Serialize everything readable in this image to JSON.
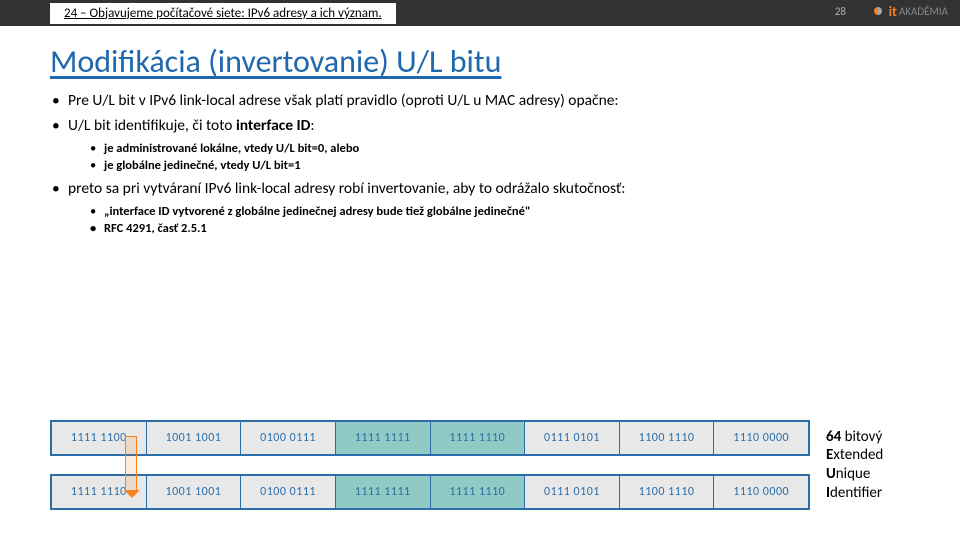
{
  "header": {
    "label": "24 – Objavujeme počítačové siete: IPv6 adresy a ich význam.",
    "page_number": "28",
    "logo_it": "it",
    "logo_rest": "AKADÉMIA"
  },
  "title": "Modifikácia (invertovanie) U/L bitu",
  "bullets": {
    "b1": "Pre U/L bit v IPv6 link-local adrese však platí pravidlo (oproti U/L u MAC adresy)  opačne:",
    "b2_pre": "U/L bit identifikuje, či toto ",
    "b2_bold": "interface ID",
    "b2_post": ":",
    "b2a_pre": "je administrované lokálne, vtedy ",
    "b2a_bold": "U/L bit=0",
    "b2a_post": ", alebo",
    "b2b_pre": "je globálne jedinečné, vtedy ",
    "b2b_bold": "U/L bit=1",
    "b3": "preto sa pri vytváraní IPv6 link-local adresy robí invertovanie, aby to odrážalo skutočnosť:",
    "b3a_pre": "„interface ID vytvorené z ",
    "b3a_bold": "globálne jedinečnej adresy bude tiež globálne jedinečné",
    "b3a_post": "\"",
    "b3b": "RFC 4291, časť 2.5.1"
  },
  "diagram": {
    "row1": [
      "1111 1100",
      "1001 1001",
      "0100 0111",
      "1111 1111",
      "1111 1110",
      "0111 0101",
      "1100 1110",
      "1110 0000"
    ],
    "row2": [
      "1111 1110",
      "1001 1001",
      "0100 0111",
      "1111 1111",
      "1111 1110",
      "0111 0101",
      "1100 1110",
      "1110 0000"
    ],
    "highlight_indices": [
      3,
      4
    ],
    "colors": {
      "cell_text": "#2a6da8",
      "cell_border": "#2a6da8",
      "cell_bg": "#e8e8e8",
      "highlight_bg": "#8fcac5",
      "arrow": "#f58220"
    },
    "side_lines": [
      "64 bitový",
      "Extended",
      "Unique",
      "Identifier"
    ],
    "side_bold_prefix": [
      "64",
      "E",
      "U",
      "I"
    ]
  }
}
